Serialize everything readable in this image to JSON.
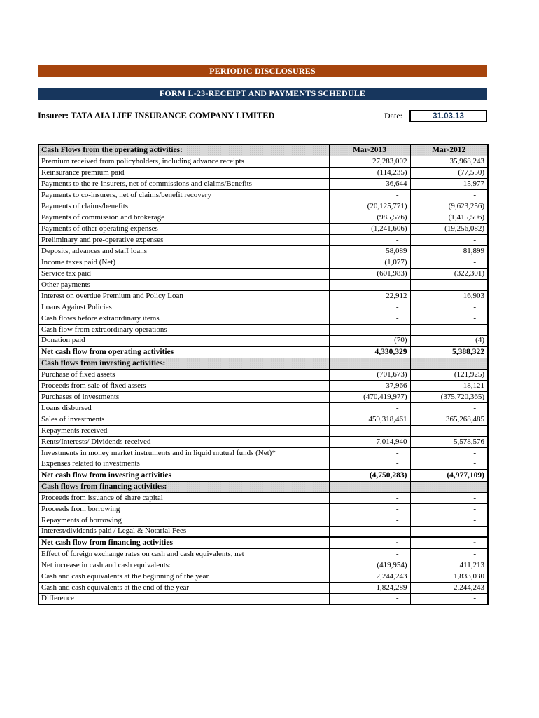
{
  "header": {
    "banner1": "PERIODIC DISCLOSURES",
    "banner2": "FORM L-23-RECEIPT AND PAYMENTS SCHEDULE",
    "insurer_label": "Insurer:",
    "insurer_name": "TATA AIA LIFE INSURANCE COMPANY LIMITED",
    "date_label": "Date:",
    "date_value": "31.03.13"
  },
  "colors": {
    "banner1_bg": "#A6440D",
    "banner2_bg": "#17365D",
    "section_bg": "#D9D9D9",
    "date_text": "#17365D"
  },
  "table": {
    "header": {
      "label": "Cash Flows from the operating activities:",
      "col1": "Mar-2013",
      "col2": "Mar-2012"
    },
    "rows": [
      {
        "type": "data",
        "label": "Premium received from policyholders, including advance receipts",
        "v1": "27,283,002",
        "v2": "35,968,243"
      },
      {
        "type": "data",
        "label": "Reinsurance premium paid",
        "v1": "(114,235)",
        "v2": "(77,550)"
      },
      {
        "type": "data",
        "label": "Payments to the re-insurers, net of commissions and claims/Benefits",
        "v1": "36,644",
        "v2": "15,977"
      },
      {
        "type": "data",
        "label": "Payments to co-insurers, net of claims/benefit recovery",
        "v1": "-",
        "v2": "-"
      },
      {
        "type": "data",
        "label": "Payments of claims/benefits",
        "v1": "(20,125,771)",
        "v2": "(9,623,256)"
      },
      {
        "type": "data",
        "label": "Payments of commission and brokerage",
        "v1": "(985,576)",
        "v2": "(1,415,506)"
      },
      {
        "type": "data",
        "label": "Payments of other operating expenses",
        "v1": "(1,241,606)",
        "v2": "(19,256,082)"
      },
      {
        "type": "data",
        "label": "Preliminary and pre-operative expenses",
        "v1": "-",
        "v2": "-"
      },
      {
        "type": "data",
        "label": "Deposits, advances and staff loans",
        "v1": "58,089",
        "v2": "81,899"
      },
      {
        "type": "data",
        "label": "Income taxes paid (Net)",
        "v1": "(1,077)",
        "v2": "-"
      },
      {
        "type": "data",
        "label": "Service tax paid",
        "v1": "(601,983)",
        "v2": "(322,301)"
      },
      {
        "type": "data",
        "label": "Other payments",
        "v1": "-",
        "v2": "-"
      },
      {
        "type": "data",
        "label": "Interest on overdue Premium and Policy Loan",
        "v1": "22,912",
        "v2": "16,903"
      },
      {
        "type": "data",
        "label": "Loans Against Policies",
        "v1": "-",
        "v2": "-"
      },
      {
        "type": "data",
        "label": "Cash flows before extraordinary items",
        "v1": "-",
        "v2": "-"
      },
      {
        "type": "data",
        "label": "Cash flow from extraordinary operations",
        "v1": "-",
        "v2": "-"
      },
      {
        "type": "data",
        "label": "Donation paid",
        "v1": "(70)",
        "v2": "(4)"
      },
      {
        "type": "total",
        "label": "Net cash flow from operating activities",
        "v1": "4,330,329",
        "v2": "5,388,322"
      },
      {
        "type": "section",
        "label": "Cash flows from investing activities:",
        "v1": "",
        "v2": ""
      },
      {
        "type": "data",
        "label": "Purchase of fixed assets",
        "v1": "(701,673)",
        "v2": "(121,925)"
      },
      {
        "type": "data",
        "label": "Proceeds from sale of fixed assets",
        "v1": "37,966",
        "v2": "18,121"
      },
      {
        "type": "data",
        "label": "Purchases of investments",
        "v1": "(470,419,977)",
        "v2": "(375,720,365)"
      },
      {
        "type": "data",
        "label": "Loans disbursed",
        "v1": "-",
        "v2": "-"
      },
      {
        "type": "data",
        "label": "Sales of investments",
        "v1": "459,318,461",
        "v2": "365,268,485"
      },
      {
        "type": "data",
        "label": "Repayments received",
        "v1": "-",
        "v2": "-"
      },
      {
        "type": "data",
        "label": "Rents/Interests/ Dividends received",
        "v1": "7,014,940",
        "v2": "5,578,576"
      },
      {
        "type": "data",
        "label": "Investments in money market instruments and in liquid mutual funds (Net)*",
        "v1": "-",
        "v2": "-"
      },
      {
        "type": "data",
        "label": "Expenses related to investments",
        "v1": "-",
        "v2": "-"
      },
      {
        "type": "total",
        "label": "Net cash flow from investing activities",
        "v1": "(4,750,283)",
        "v2": "(4,977,109)"
      },
      {
        "type": "section",
        "label": "Cash flows from financing activities:",
        "v1": "",
        "v2": ""
      },
      {
        "type": "data",
        "label": "Proceeds from issuance of share capital",
        "v1": "-",
        "v2": "-"
      },
      {
        "type": "data",
        "label": "Proceeds from borrowing",
        "v1": "-",
        "v2": "-"
      },
      {
        "type": "data",
        "label": "Repayments of borrowing",
        "v1": "-",
        "v2": "-"
      },
      {
        "type": "data",
        "label": "Interest/dividends paid  / Legal & Notarial Fees",
        "v1": "-",
        "v2": "-"
      },
      {
        "type": "total",
        "label": "Net cash flow from financing activities",
        "v1": "-",
        "v2": "-"
      },
      {
        "type": "data",
        "label": "Effect of foreign exchange rates on cash and cash equivalents, net",
        "v1": "-",
        "v2": "-"
      },
      {
        "type": "data",
        "label": "Net increase in cash and cash equivalents:",
        "v1": "(419,954)",
        "v2": "411,213"
      },
      {
        "type": "data",
        "label": "Cash and cash equivalents at the beginning of the year",
        "v1": "2,244,243",
        "v2": "1,833,030"
      },
      {
        "type": "data",
        "label": "Cash and cash equivalents at the end of the year",
        "v1": "1,824,289",
        "v2": "2,244,243"
      },
      {
        "type": "data",
        "label": "Difference",
        "v1": "-",
        "v2": "-"
      }
    ]
  }
}
